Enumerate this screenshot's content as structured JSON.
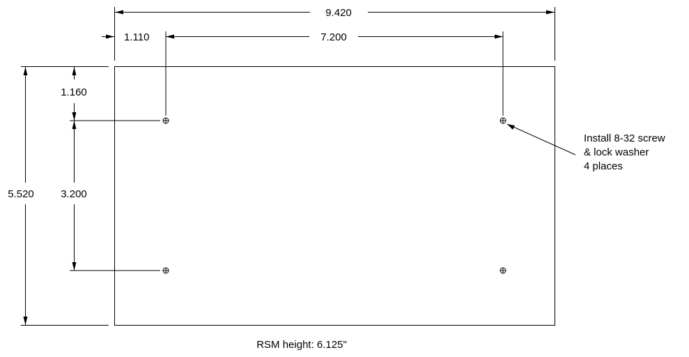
{
  "dimensions": {
    "overall_width": "9.420",
    "left_offset": "1.110",
    "hole_spacing_x": "7.200",
    "top_offset": "1.160",
    "hole_spacing_y": "3.200",
    "overall_height": "5.520"
  },
  "callout": {
    "line1": "Install 8-32 screw",
    "line2": "& lock washer",
    "line3": "4 places"
  },
  "footer": {
    "note": "RSM height: 6.125\""
  },
  "colors": {
    "line": "#000000",
    "background": "#ffffff"
  }
}
